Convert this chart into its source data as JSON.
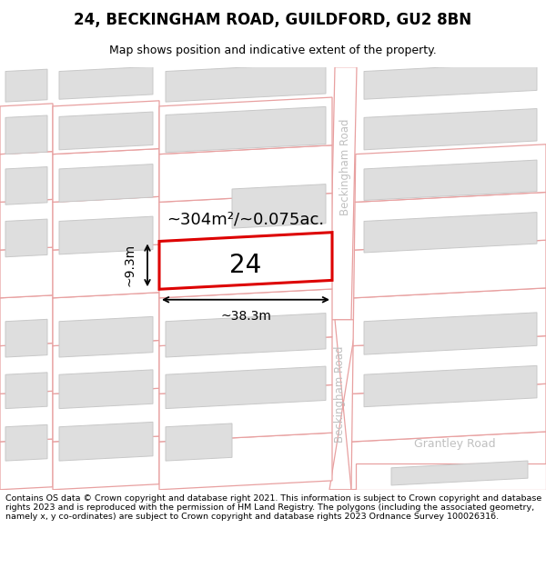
{
  "title": "24, BECKINGHAM ROAD, GUILDFORD, GU2 8BN",
  "subtitle": "Map shows position and indicative extent of the property.",
  "footer": "Contains OS data © Crown copyright and database right 2021. This information is subject to Crown copyright and database rights 2023 and is reproduced with the permission of HM Land Registry. The polygons (including the associated geometry, namely x, y co-ordinates) are subject to Crown copyright and database rights 2023 Ordnance Survey 100026316.",
  "road_line_color": "#e8a0a0",
  "road_fill": "#ffffff",
  "building_fill": "#dedede",
  "building_stroke": "#c8c8c8",
  "highlight_fill": "#ffffff",
  "highlight_stroke": "#dd0000",
  "road_label_color": "#c0c0c0",
  "area_text": "~304m²/~0.075ac.",
  "label_24": "24",
  "dim_width": "~38.3m",
  "dim_height": "~9.3m",
  "grantley_road": "Grantley Road",
  "beckingham_road": "Beckingham Road"
}
